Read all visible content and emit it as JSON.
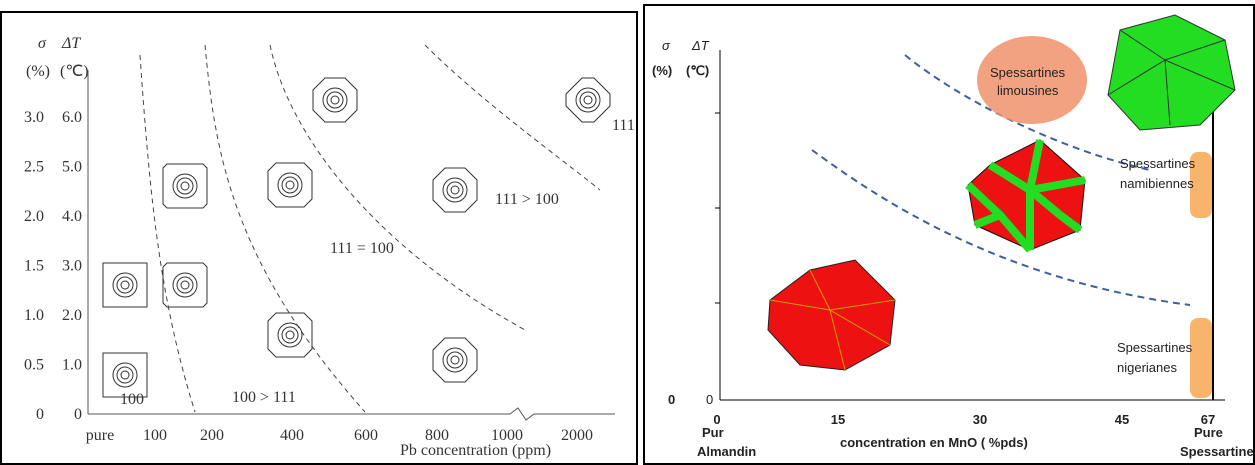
{
  "left": {
    "sigma_symbol": "σ",
    "dT_symbol": "ΔT",
    "sigma_unit": "(%)",
    "dT_unit": "(℃)",
    "sigma_ticks": [
      "3.0",
      "2.5",
      "2.0",
      "1.5",
      "1.0",
      "0.5",
      "0"
    ],
    "dT_ticks": [
      "6.0",
      "5.0",
      "4.0",
      "3.0",
      "2.0",
      "1.0",
      "0"
    ],
    "x_ticks": [
      "pure",
      "100",
      "200",
      "400",
      "600",
      "800",
      "1000",
      "2000"
    ],
    "x_label": "Pb concentration (ppm)",
    "region_labels": [
      "100",
      "100 > 111",
      "111 = 100",
      "111 > 100",
      "111"
    ]
  },
  "right": {
    "sigma_symbol": "σ",
    "dT_symbol": "ΔT",
    "sigma_unit": "(%)",
    "dT_unit": "(℃)",
    "y_zero": "0",
    "origin_zero": "0",
    "x_ticks": [
      "0",
      "15",
      "30",
      "45",
      "67"
    ],
    "x_label": "concentration en MnO ( %pds)",
    "left_end": [
      "Pur",
      "Almandin"
    ],
    "right_end": [
      "Pure",
      "Spessartine"
    ],
    "groups": [
      [
        "Spessartines",
        "limousines"
      ],
      [
        "Spessartines",
        "namibiennes"
      ],
      [
        "Spessartines",
        "nigerianes"
      ]
    ]
  }
}
